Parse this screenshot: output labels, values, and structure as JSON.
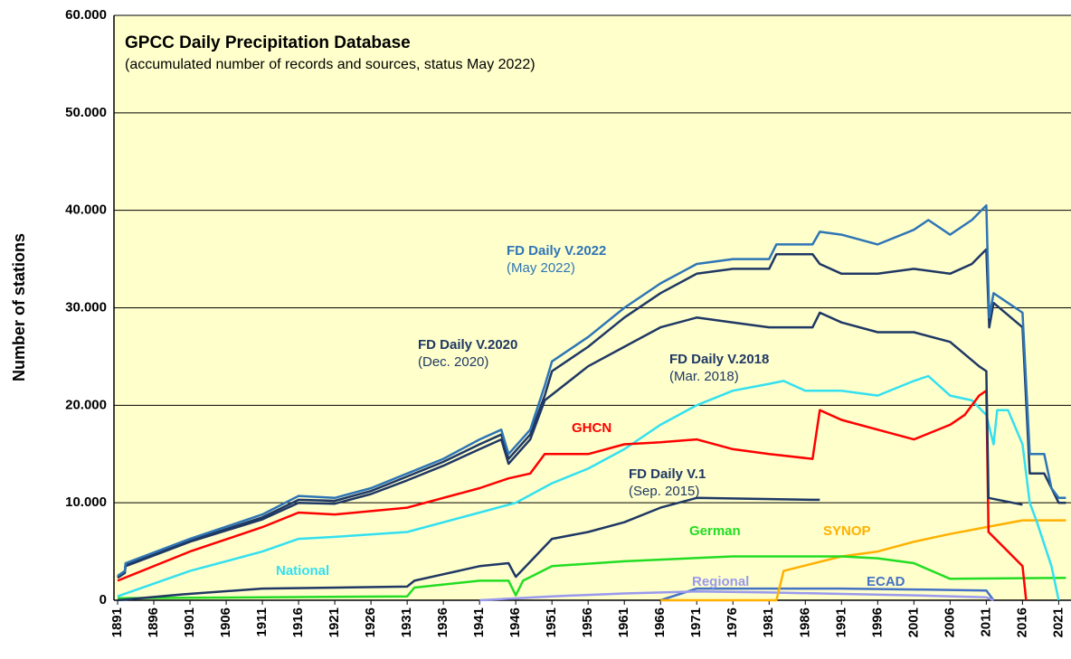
{
  "chart_data": {
    "type": "line",
    "title": "GPCC Daily Precipitation Database",
    "subtitle": "(accumulated number of records and sources, status May 2022)",
    "y_label": "Number of stations",
    "xlim": [
      1890.5,
      2022.7
    ],
    "xticks": [
      1891,
      1896,
      1901,
      1906,
      1911,
      1916,
      1921,
      1926,
      1931,
      1936,
      1941,
      1946,
      1951,
      1956,
      1961,
      1966,
      1971,
      1976,
      1981,
      1986,
      1991,
      1996,
      2001,
      2006,
      2011,
      2016,
      2021
    ],
    "ylim": [
      0,
      60000
    ],
    "yticks": [
      {
        "value": 0,
        "label": "0"
      },
      {
        "value": 10000,
        "label": "10.000"
      },
      {
        "value": 20000,
        "label": "20.000"
      },
      {
        "value": 30000,
        "label": "30.000"
      },
      {
        "value": 40000,
        "label": "40.000"
      },
      {
        "value": 50000,
        "label": "50.000"
      },
      {
        "value": 60000,
        "label": "60.000"
      }
    ],
    "grid": true,
    "series": [
      {
        "name": "FD Daily V.2022",
        "note": "(May 2022)",
        "color": "#2e75b6",
        "x": [
          1891,
          1892,
          1892.1,
          1901,
          1911,
          1916,
          1921,
          1926,
          1931,
          1936,
          1941,
          1944,
          1945,
          1948,
          1950,
          1951,
          1956,
          1961,
          1966,
          1971,
          1976,
          1981,
          1982,
          1987,
          1988,
          1991,
          1996,
          2001,
          2003,
          2006,
          2009,
          2011,
          2011.4,
          2012,
          2016,
          2017,
          2019,
          2020,
          2021,
          2022
        ],
        "values": [
          2500,
          3000,
          3800,
          6300,
          8800,
          10700,
          10500,
          11500,
          13000,
          14500,
          16500,
          17500,
          15000,
          17500,
          22000,
          24500,
          27000,
          30000,
          32500,
          34500,
          35000,
          35000,
          36500,
          36500,
          37800,
          37500,
          36500,
          38000,
          39000,
          37500,
          39000,
          40500,
          29000,
          31500,
          29500,
          15000,
          15000,
          11500,
          10500,
          10500
        ]
      },
      {
        "name": "FD Daily V.2020",
        "note": "(Dec. 2020)",
        "color": "#1f3864",
        "x": [
          1891,
          1892,
          1892.1,
          1901,
          1911,
          1916,
          1921,
          1926,
          1931,
          1936,
          1941,
          1944,
          1945,
          1948,
          1950,
          1951,
          1956,
          1961,
          1966,
          1971,
          1976,
          1981,
          1982,
          1987,
          1988,
          1991,
          1996,
          2001,
          2006,
          2009,
          2011,
          2011.4,
          2012,
          2016,
          2017,
          2019,
          2021,
          2022
        ],
        "values": [
          2400,
          2900,
          3600,
          6100,
          8500,
          10300,
          10200,
          11200,
          12700,
          14200,
          16000,
          17000,
          14500,
          17000,
          21000,
          23500,
          26000,
          29000,
          31500,
          33500,
          34000,
          34000,
          35500,
          35500,
          34500,
          33500,
          33500,
          34000,
          33500,
          34500,
          36000,
          28000,
          30500,
          28000,
          13000,
          13000,
          10000,
          10000
        ]
      },
      {
        "name": "FD Daily V.2018",
        "note": "(Mar. 2018)",
        "color": "#1f3864",
        "x": [
          1891,
          1892,
          1892.1,
          1901,
          1911,
          1916,
          1921,
          1926,
          1931,
          1936,
          1941,
          1944,
          1945,
          1948,
          1950,
          1956,
          1961,
          1966,
          1971,
          1976,
          1981,
          1987,
          1988,
          1991,
          1996,
          2001,
          2006,
          2010,
          2011,
          2011.3,
          2016
        ],
        "values": [
          2300,
          2800,
          3500,
          6000,
          8300,
          10000,
          9900,
          10900,
          12300,
          13800,
          15500,
          16500,
          14000,
          16500,
          20500,
          24000,
          26000,
          28000,
          29000,
          28500,
          28000,
          28000,
          29500,
          28500,
          27500,
          27500,
          26500,
          24000,
          23500,
          10500,
          9800
        ]
      },
      {
        "name": "GHCN",
        "color": "#ff0000",
        "x": [
          1891,
          1901,
          1911,
          1916,
          1921,
          1931,
          1941,
          1945,
          1948,
          1950,
          1956,
          1961,
          1966,
          1971,
          1976,
          1981,
          1987,
          1988,
          1991,
          1996,
          2001,
          2006,
          2008,
          2010,
          2011,
          2011.3,
          2014,
          2016,
          2016.5
        ],
        "values": [
          2000,
          5000,
          7500,
          9000,
          8800,
          9500,
          11500,
          12500,
          13000,
          15000,
          15000,
          16000,
          16200,
          16500,
          15500,
          15000,
          14500,
          19500,
          18500,
          17500,
          16500,
          18000,
          19000,
          21000,
          21500,
          7000,
          5000,
          3500,
          0
        ]
      },
      {
        "name": "FD Daily V.1",
        "note": "(Sep. 2015)",
        "color": "#1f3864",
        "x": [
          1891,
          1900,
          1911,
          1931,
          1932,
          1941,
          1945,
          1946,
          1951,
          1956,
          1961,
          1966,
          1971,
          1987,
          1988
        ],
        "values": [
          0,
          600,
          1200,
          1400,
          2000,
          3500,
          3800,
          2400,
          6300,
          7000,
          8000,
          9500,
          10500,
          10300,
          10300
        ]
      },
      {
        "name": "German",
        "color": "#22dd22",
        "x": [
          1891,
          1931,
          1932,
          1941,
          1945,
          1946,
          1947,
          1951,
          1961,
          1976,
          1991,
          1996,
          2001,
          2006,
          2022
        ],
        "values": [
          200,
          400,
          1300,
          2000,
          2000,
          500,
          2000,
          3500,
          4000,
          4500,
          4500,
          4300,
          3800,
          2200,
          2300
        ]
      },
      {
        "name": "SYNOP",
        "color": "#ffb000",
        "x": [
          1966,
          1982,
          1983,
          1991,
          1996,
          2001,
          2006,
          2011,
          2016,
          2022
        ],
        "values": [
          0,
          0,
          3000,
          4500,
          5000,
          6000,
          6800,
          7500,
          8200,
          8200
        ]
      },
      {
        "name": "National",
        "color": "#33e0f0",
        "x": [
          1891,
          1901,
          1911,
          1916,
          1921,
          1931,
          1941,
          1946,
          1951,
          1956,
          1961,
          1966,
          1971,
          1976,
          1981,
          1983,
          1986,
          1991,
          1996,
          2001,
          2003,
          2006,
          2009,
          2011,
          2012,
          2012.5,
          2014,
          2016,
          2017,
          2018,
          2020,
          2021
        ],
        "values": [
          400,
          3000,
          5000,
          6300,
          6500,
          7000,
          9000,
          10000,
          12000,
          13500,
          15500,
          18000,
          20000,
          21500,
          22200,
          22500,
          21500,
          21500,
          21000,
          22500,
          23000,
          21000,
          20500,
          19000,
          16000,
          19500,
          19500,
          16000,
          10000,
          8000,
          3500,
          0
        ]
      },
      {
        "name": "Regional",
        "color": "#9999ee",
        "x": [
          1941,
          1951,
          1961,
          1971,
          1981,
          2001,
          2011,
          2012
        ],
        "values": [
          0,
          400,
          700,
          900,
          800,
          500,
          300,
          0
        ]
      },
      {
        "name": "ECAD",
        "color": "#4472c4",
        "x": [
          1966,
          1971,
          1991,
          2001,
          2011,
          2012
        ],
        "values": [
          0,
          1200,
          1200,
          1100,
          1000,
          0
        ]
      }
    ]
  }
}
